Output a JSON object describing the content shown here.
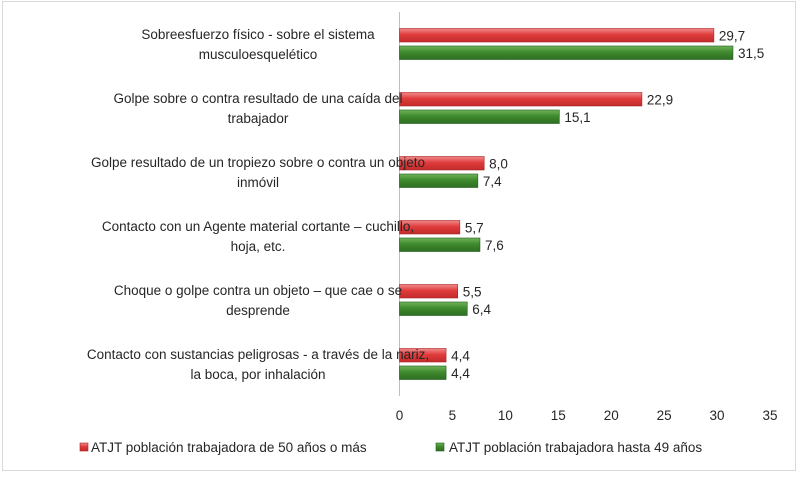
{
  "chart_data": {
    "type": "bar",
    "orientation": "horizontal",
    "categories": [
      [
        "Sobreesfuerzo físico - sobre el sistema",
        "musculoesquelético"
      ],
      [
        "Golpe sobre o contra resultado de una caída del",
        "trabajador"
      ],
      [
        "Golpe resultado de un tropiezo sobre o contra un objeto",
        "inmóvil"
      ],
      [
        "Contacto con un Agente material cortante –  cuchillo,",
        "hoja, etc."
      ],
      [
        "Choque o golpe contra un objeto – que cae o se",
        "desprende"
      ],
      [
        "Contacto con sustancias peligrosas - a través de la nariz,",
        "la boca, por inhalación"
      ]
    ],
    "series": [
      {
        "name": "ATJT población trabajadora de  50 años o más",
        "color": "#e03c3c",
        "values": [
          29.7,
          22.9,
          8.0,
          5.7,
          5.5,
          4.4
        ],
        "labels": [
          "29,7",
          "22,9",
          "8,0",
          "5,7",
          "5,5",
          "4,4"
        ]
      },
      {
        "name": "ATJT población trabajadora hasta 49 años",
        "color": "#3f8a2e",
        "values": [
          31.5,
          15.1,
          7.4,
          7.6,
          6.4,
          4.4
        ],
        "labels": [
          "31,5",
          "15,1",
          "7,4",
          "7,6",
          "6,4",
          "4,4"
        ]
      }
    ],
    "xlim": [
      0,
      35
    ],
    "xticks": [
      "0",
      "5",
      "10",
      "15",
      "20",
      "25",
      "30",
      "35"
    ],
    "grid": false,
    "legend_position": "bottom"
  }
}
